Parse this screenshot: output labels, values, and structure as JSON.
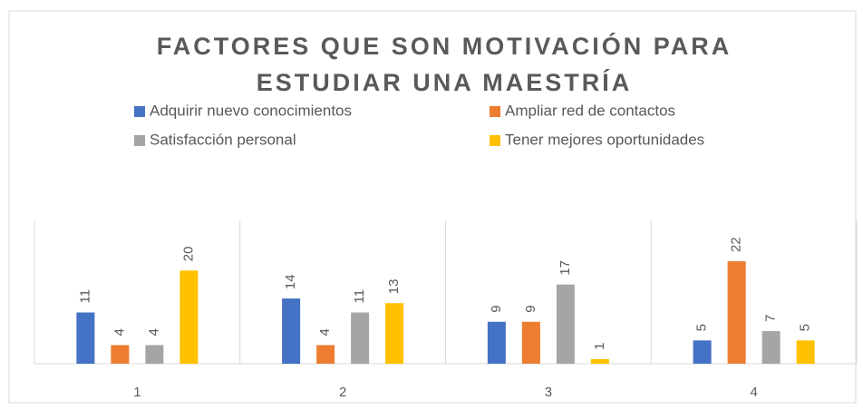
{
  "chart_data": {
    "type": "bar",
    "title": [
      "FACTORES QUE SON MOTIVACIÓN PARA",
      "ESTUDIAR UNA MAESTRÍA"
    ],
    "categories": [
      "1",
      "2",
      "3",
      "4"
    ],
    "series": [
      {
        "name": "Adquirir nuevo conocimientos",
        "color": "#4472c4",
        "values": [
          11,
          14,
          9,
          5
        ]
      },
      {
        "name": "Ampliar red de contactos",
        "color": "#ed7d31",
        "values": [
          4,
          4,
          9,
          22
        ]
      },
      {
        "name": "Satisfacción personal",
        "color": "#a5a5a5",
        "values": [
          4,
          11,
          17,
          7
        ]
      },
      {
        "name": "Tener mejores oportunidades",
        "color": "#ffc000",
        "values": [
          20,
          13,
          1,
          5
        ]
      }
    ],
    "legend": "top",
    "data_labels": true
  }
}
